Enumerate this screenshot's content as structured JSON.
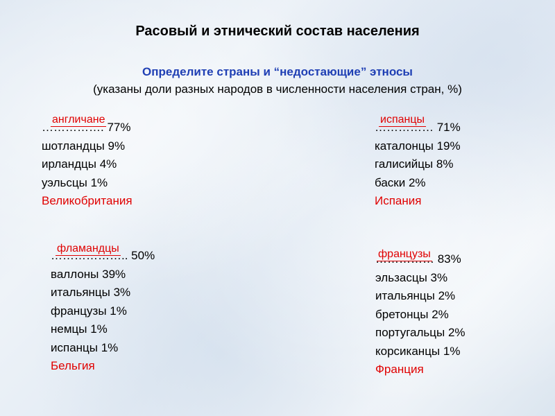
{
  "title": "Расовый и этнический состав населения",
  "subtitle": "Определите страны и “недостающие” этносы",
  "note": "(указаны доли разных народов в численности населения стран, %)",
  "blocks": {
    "uk": {
      "answer": "англичане",
      "lines": [
        "……………. 77%",
        "шотландцы 9%",
        "ирландцы 4%",
        "уэльсцы 1%"
      ],
      "country": "Великобритания"
    },
    "es": {
      "answer": "испанцы",
      "lines": [
        "…………… 71%",
        "каталонцы 19%",
        "галисийцы 8%",
        "баски 2%"
      ],
      "country": "Испания"
    },
    "be": {
      "answer": "фламандцы",
      "lines": [
        "……………….. 50%",
        "валлоны 39%",
        "итальянцы 3%",
        "французы 1%",
        "немцы 1%",
        "испанцы 1%"
      ],
      "country": "Бельгия"
    },
    "fr": {
      "answer": "французы",
      "lines": [
        "…………… 83%",
        "эльзасцы 3%",
        "итальянцы 2%",
        "бретонцы 2%",
        "португальцы 2%",
        "корсиканцы 1%"
      ],
      "country": "Франция"
    }
  }
}
